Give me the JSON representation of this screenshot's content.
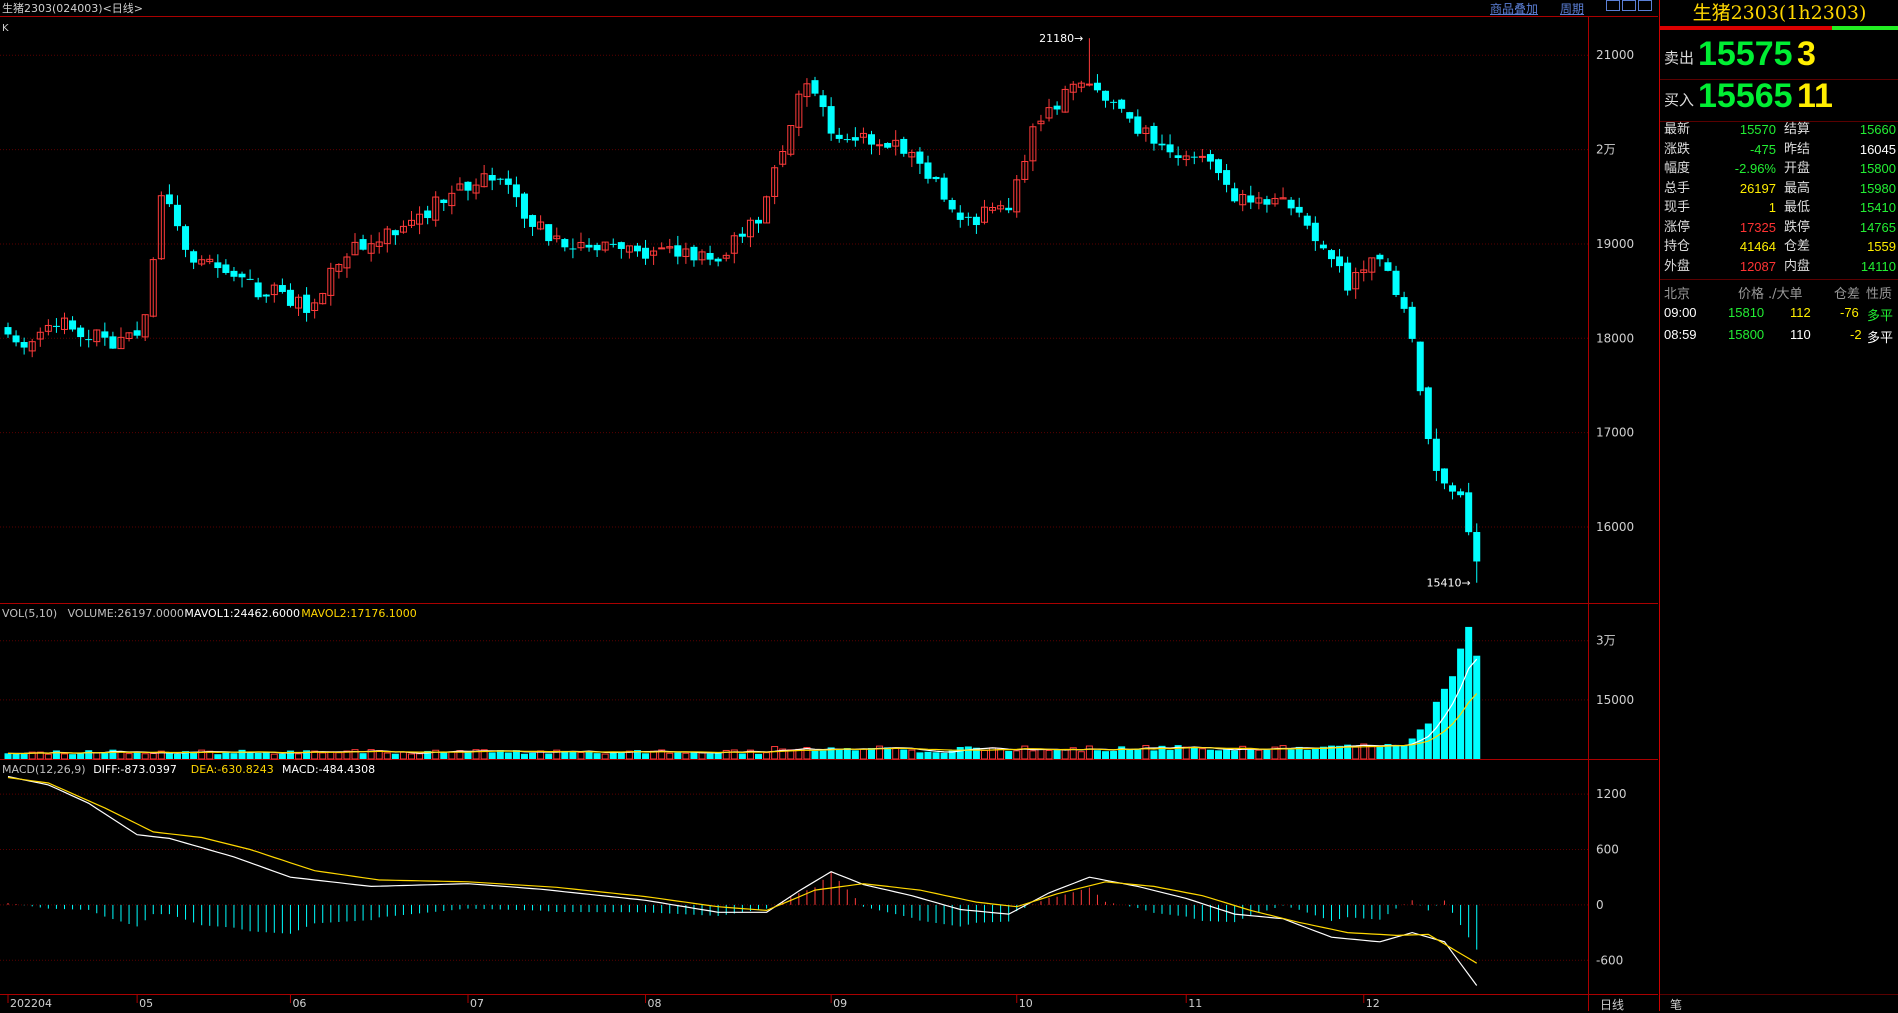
{
  "header": {
    "title": "生猪2303(024003)<日线>",
    "k_label": "K",
    "link_overlay": "商品叠加",
    "link_period": "周期"
  },
  "side_panel": {
    "title": "生猪2303(1h2303)",
    "sell_label": "卖出",
    "sell_price": "15575",
    "sell_volume": "3",
    "buy_label": "买入",
    "buy_price": "15565",
    "buy_volume": "11",
    "stats_left": [
      {
        "label": "最新",
        "value": "15570",
        "color": "#22ee33"
      },
      {
        "label": "涨跌",
        "value": "-475",
        "color": "#22ee33"
      },
      {
        "label": "幅度",
        "value": "-2.96%",
        "color": "#22ee33"
      },
      {
        "label": "总手",
        "value": "26197",
        "color": "#ffee00"
      },
      {
        "label": "现手",
        "value": "1",
        "color": "#ffee00"
      },
      {
        "label": "涨停",
        "value": "17325",
        "color": "#ff3333"
      },
      {
        "label": "持仓",
        "value": "41464",
        "color": "#ffee00"
      },
      {
        "label": "外盘",
        "value": "12087",
        "color": "#ff3333"
      }
    ],
    "stats_right": [
      {
        "label": "结算",
        "value": "15660",
        "color": "#22ee33"
      },
      {
        "label": "昨结",
        "value": "16045",
        "color": "#ffffff"
      },
      {
        "label": "开盘",
        "value": "15800",
        "color": "#22ee33"
      },
      {
        "label": "最高",
        "value": "15980",
        "color": "#22ee33"
      },
      {
        "label": "最低",
        "value": "15410",
        "color": "#22ee33"
      },
      {
        "label": "跌停",
        "value": "14765",
        "color": "#22ee33"
      },
      {
        "label": "仓差",
        "value": "1559",
        "color": "#ffee00"
      },
      {
        "label": "内盘",
        "value": "14110",
        "color": "#22ee33"
      }
    ],
    "tick_headers": [
      "北京",
      "价格",
      "./大单",
      "仓差",
      "性质"
    ],
    "ticks": [
      {
        "time": "09:00",
        "price": "15810",
        "volume": "112",
        "oi_change": "-76",
        "nature": "多平"
      },
      {
        "time": "08:59",
        "price": "15800",
        "volume": "110",
        "oi_change": "-2",
        "nature": "多平"
      }
    ]
  },
  "bottom": {
    "period_label": "日线",
    "tab_label": "笔"
  },
  "chart_data": [
    {
      "type": "candlestick",
      "ylim": [
        15280,
        21320
      ],
      "y_ticks": [
        16000,
        17000,
        18000,
        19000,
        20000,
        21000
      ],
      "y_tick_labels": [
        "16000",
        "17000",
        "18000",
        "19000",
        "2万",
        "21000"
      ],
      "x_tick_labels": [
        "202204",
        "05",
        "06",
        "07",
        "08",
        "09",
        "10",
        "11",
        "12"
      ],
      "x_tick_index": [
        0,
        16,
        35,
        57,
        79,
        102,
        125,
        146,
        168
      ],
      "annotations": [
        {
          "label": "21180",
          "value": 21180
        },
        {
          "label": "15410",
          "value": 15410
        }
      ],
      "anchors": [
        [
          0,
          18120
        ],
        [
          3,
          17880
        ],
        [
          5,
          18200
        ],
        [
          10,
          18050
        ],
        [
          14,
          17950
        ],
        [
          17,
          18200
        ],
        [
          19,
          19600
        ],
        [
          22,
          18900
        ],
        [
          28,
          18600
        ],
        [
          34,
          18450
        ],
        [
          37,
          18300
        ],
        [
          42,
          18950
        ],
        [
          50,
          19200
        ],
        [
          55,
          19550
        ],
        [
          58,
          19700
        ],
        [
          62,
          19600
        ],
        [
          65,
          19200
        ],
        [
          70,
          19000
        ],
        [
          75,
          18950
        ],
        [
          82,
          18900
        ],
        [
          88,
          18850
        ],
        [
          93,
          19300
        ],
        [
          97,
          20300
        ],
        [
          99,
          20700
        ],
        [
          102,
          20250
        ],
        [
          105,
          20100
        ],
        [
          110,
          20050
        ],
        [
          115,
          19700
        ],
        [
          118,
          19200
        ],
        [
          122,
          19350
        ],
        [
          124,
          19400
        ],
        [
          127,
          20200
        ],
        [
          132,
          20700
        ],
        [
          137,
          20500
        ],
        [
          142,
          20050
        ],
        [
          148,
          19900
        ],
        [
          152,
          19500
        ],
        [
          158,
          19500
        ],
        [
          160,
          19300
        ],
        [
          163,
          19000
        ],
        [
          166,
          18550
        ],
        [
          168,
          18700
        ],
        [
          170,
          18900
        ],
        [
          172,
          18500
        ],
        [
          174,
          17950
        ],
        [
          176,
          16900
        ],
        [
          178,
          16400
        ],
        [
          180,
          16300
        ],
        [
          181,
          15900
        ],
        [
          182,
          15570
        ]
      ]
    },
    {
      "type": "bar",
      "indicator": "VOL(5,10)",
      "header": [
        {
          "text": "VOL(5,10)",
          "color": "#c0c0c0"
        },
        {
          "text": "VOLUME:26197.0000",
          "color": "#c0c0c0"
        },
        {
          "text": "MAVOL1:24462.6000",
          "color": "#ffffff"
        },
        {
          "text": "MAVOL2:17176.1000",
          "color": "#ffd700"
        }
      ],
      "ylim": [
        0,
        35000
      ],
      "y_ticks": [
        15000,
        30000
      ],
      "y_tick_labels": [
        "15000",
        "3万"
      ],
      "last_values": [
        21000,
        28000,
        33500,
        26197
      ]
    },
    {
      "type": "line",
      "indicator": "MACD(12,26,9)",
      "header": [
        {
          "text": "MACD(12,26,9)",
          "color": "#c0c0c0"
        },
        {
          "text": "DIFF:-873.0397",
          "color": "#ffffff"
        },
        {
          "text": "DEA:-630.8243",
          "color": "#ffd700"
        },
        {
          "text": "MACD:-484.4308",
          "color": "#ffffff"
        }
      ],
      "ylim": [
        -900,
        1450
      ],
      "y_ticks": [
        1200,
        600,
        0,
        -600
      ],
      "y_tick_labels": [
        "1200",
        "600",
        "0",
        "-600"
      ],
      "series": [
        {
          "key": "diff",
          "color": "#ffffff",
          "anchors": [
            [
              0,
              1390
            ],
            [
              5,
              1300
            ],
            [
              10,
              1100
            ],
            [
              16,
              760
            ],
            [
              20,
              720
            ],
            [
              28,
              520
            ],
            [
              35,
              300
            ],
            [
              45,
              200
            ],
            [
              57,
              230
            ],
            [
              66,
              170
            ],
            [
              79,
              50
            ],
            [
              88,
              -80
            ],
            [
              94,
              -80
            ],
            [
              98,
              150
            ],
            [
              102,
              360
            ],
            [
              106,
              220
            ],
            [
              112,
              100
            ],
            [
              118,
              -50
            ],
            [
              124,
              -100
            ],
            [
              129,
              130
            ],
            [
              134,
              300
            ],
            [
              140,
              200
            ],
            [
              146,
              70
            ],
            [
              152,
              -100
            ],
            [
              158,
              -150
            ],
            [
              164,
              -350
            ],
            [
              170,
              -400
            ],
            [
              174,
              -300
            ],
            [
              178,
              -400
            ],
            [
              182,
              -873
            ]
          ]
        },
        {
          "key": "dea",
          "color": "#ffd700",
          "anchors": [
            [
              0,
              1380
            ],
            [
              5,
              1320
            ],
            [
              12,
              1050
            ],
            [
              18,
              790
            ],
            [
              24,
              730
            ],
            [
              30,
              600
            ],
            [
              38,
              370
            ],
            [
              46,
              270
            ],
            [
              57,
              250
            ],
            [
              68,
              190
            ],
            [
              79,
              90
            ],
            [
              88,
              -20
            ],
            [
              94,
              -60
            ],
            [
              100,
              160
            ],
            [
              106,
              230
            ],
            [
              113,
              160
            ],
            [
              120,
              30
            ],
            [
              125,
              -20
            ],
            [
              130,
              120
            ],
            [
              136,
              250
            ],
            [
              142,
              200
            ],
            [
              148,
              100
            ],
            [
              154,
              -60
            ],
            [
              160,
              -190
            ],
            [
              166,
              -300
            ],
            [
              172,
              -330
            ],
            [
              176,
              -320
            ],
            [
              182,
              -631
            ]
          ]
        }
      ]
    }
  ]
}
